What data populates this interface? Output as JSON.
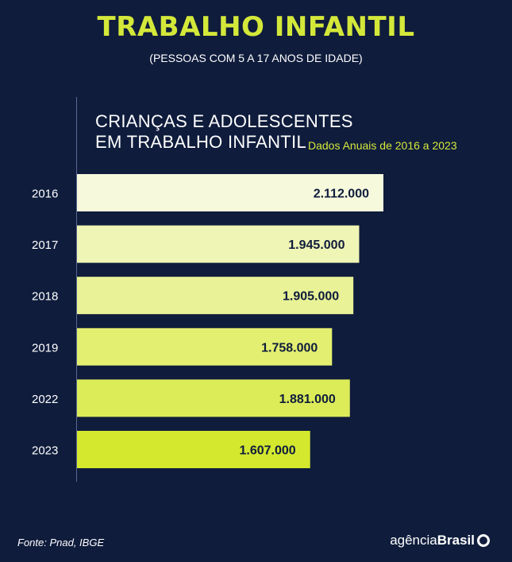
{
  "header": {
    "title": "TRABALHO INFANTIL",
    "subtitle": "(PESSOAS COM 5 A 17 ANOS DE IDADE)"
  },
  "chart_heading": {
    "line1": "CRIANÇAS E ADOLESCENTES",
    "line2": "EM TRABALHO INFANTIL",
    "note": "Dados Anuais de 2016 a 2023"
  },
  "chart_data": {
    "type": "bar",
    "orientation": "horizontal",
    "categories": [
      "2016",
      "2017",
      "2018",
      "2019",
      "2022",
      "2023"
    ],
    "values": [
      2112000,
      1945000,
      1905000,
      1758000,
      1881000,
      1607000
    ],
    "value_labels": [
      "2.112.000",
      "1.945.000",
      "1.905.000",
      "1.758.000",
      "1.881.000",
      "1.607.000"
    ],
    "bar_colors": [
      "#f6f9dc",
      "#eff5b4",
      "#e9f296",
      "#e3ef70",
      "#dcec58",
      "#d4e82e"
    ],
    "grid": false
  },
  "footer": {
    "source": "Fonte:  Pnad, IBGE",
    "logo_light": "agência",
    "logo_bold": "Brasil"
  },
  "colors": {
    "background": "#0f1c3c",
    "accent": "#d4e83a"
  }
}
